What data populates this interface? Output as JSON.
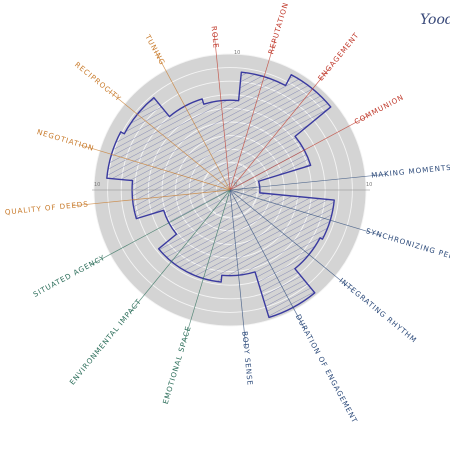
{
  "logo_text": "Yood",
  "tick_labels": [
    "0",
    "10",
    "10",
    "10"
  ],
  "sectors": [
    {
      "label": "ROLE",
      "color": "#c0392b",
      "value": 6.6
    },
    {
      "label": "REPUTATION",
      "color": "#c0392b",
      "value": 8.7
    },
    {
      "label": "ENGAGEMENT",
      "color": "#c0392b",
      "value": 9.6
    },
    {
      "label": "COMMUNION",
      "color": "#c0392b",
      "value": 6.2
    },
    {
      "label": "MAKING MOMENTS TO S",
      "color": "#2c4a7a",
      "value": 2.2
    },
    {
      "label": "SYNCHRONIZING PERFORMANCE",
      "color": "#2c4a7a",
      "value": 7.7
    },
    {
      "label": "INTEGRATING RHYTHM",
      "color": "#2c4a7a",
      "value": 7.5
    },
    {
      "label": "DURATION OF ENGAGEMENT",
      "color": "#2c4a7a",
      "value": 9.8
    },
    {
      "label": "BODY SENSE",
      "color": "#2c4a7a",
      "value": 6.3
    },
    {
      "label": "EMOTIONAL SPACE",
      "color": "#2c6e5a",
      "value": 6.8
    },
    {
      "label": "ENVIRONMENTAL IMPACT",
      "color": "#2c6e5a",
      "value": 6.8
    },
    {
      "label": "SITUATED AGENCY",
      "color": "#2c6e5a",
      "value": 5.1
    },
    {
      "label": "QUALITY OF DEEDS",
      "color": "#c87a2a",
      "value": 7.2
    },
    {
      "label": "NEGOTIATION",
      "color": "#c87a2a",
      "value": 9.1
    },
    {
      "label": "RECIPROCITY",
      "color": "#c87a2a",
      "value": 8.8
    },
    {
      "label": "TUNING",
      "color": "#c87a2a",
      "value": 7.0
    }
  ]
}
